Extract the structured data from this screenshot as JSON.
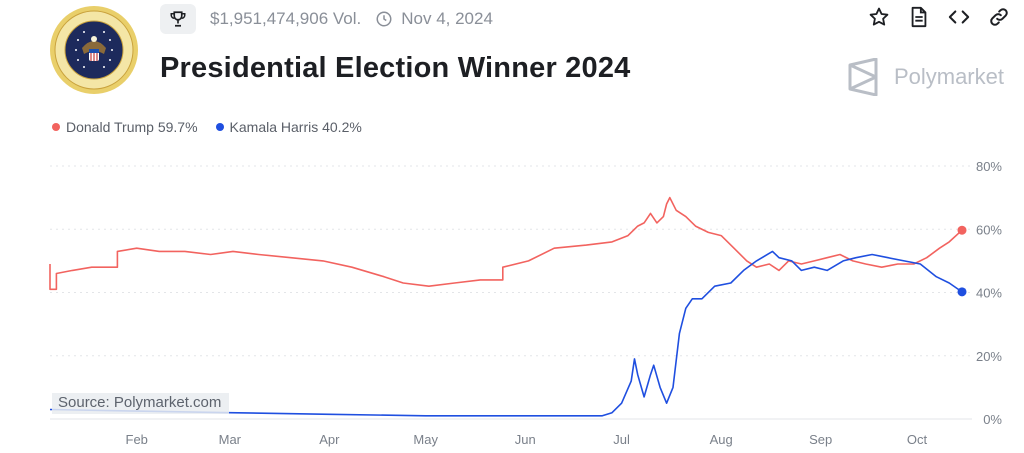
{
  "header": {
    "volume": "$1,951,474,906 Vol.",
    "date": "Nov 4, 2024",
    "title": "Presidential Election Winner 2024",
    "brand": "Polymarket",
    "icons": [
      "trophy-icon",
      "clock-icon",
      "star-icon",
      "document-icon",
      "code-icon",
      "link-icon",
      "polymarket-logo-icon",
      "presidential-seal-icon"
    ]
  },
  "legend": [
    {
      "label": "Donald Trump 59.7%",
      "color": "#f2635f"
    },
    {
      "label": "Kamala Harris 40.2%",
      "color": "#1f4fe0"
    }
  ],
  "source": "Source: Polymarket.com",
  "chart_data": {
    "type": "line",
    "x_tick_labels": [
      "Feb",
      "Mar",
      "Apr",
      "May",
      "Jun",
      "Jul",
      "Aug",
      "Sep",
      "Oct"
    ],
    "y_tick_labels": [
      "80%",
      "60%",
      "40%",
      "20%",
      "0%"
    ],
    "y_ticks": [
      80,
      60,
      40,
      20,
      0
    ],
    "ylim": [
      0,
      80
    ],
    "xlim": [
      "2024-01-05",
      "2024-10-15"
    ],
    "grid": true,
    "legend_position": "top-left",
    "series": [
      {
        "name": "Donald Trump",
        "color": "#f2635f",
        "points": [
          [
            "2024-01-05",
            49
          ],
          [
            "2024-01-05",
            41
          ],
          [
            "2024-01-07",
            41
          ],
          [
            "2024-01-07",
            46
          ],
          [
            "2024-01-12",
            47
          ],
          [
            "2024-01-18",
            48
          ],
          [
            "2024-01-26",
            48
          ],
          [
            "2024-01-26",
            53
          ],
          [
            "2024-02-01",
            54
          ],
          [
            "2024-02-08",
            53
          ],
          [
            "2024-02-16",
            53
          ],
          [
            "2024-02-24",
            52
          ],
          [
            "2024-03-02",
            53
          ],
          [
            "2024-03-10",
            52
          ],
          [
            "2024-03-20",
            51
          ],
          [
            "2024-03-30",
            50
          ],
          [
            "2024-04-08",
            48
          ],
          [
            "2024-04-18",
            45
          ],
          [
            "2024-04-24",
            43
          ],
          [
            "2024-05-02",
            42
          ],
          [
            "2024-05-10",
            43
          ],
          [
            "2024-05-18",
            44
          ],
          [
            "2024-05-25",
            44
          ],
          [
            "2024-05-25",
            48
          ],
          [
            "2024-06-02",
            50
          ],
          [
            "2024-06-10",
            54
          ],
          [
            "2024-06-20",
            55
          ],
          [
            "2024-06-28",
            56
          ],
          [
            "2024-07-03",
            58
          ],
          [
            "2024-07-06",
            61
          ],
          [
            "2024-07-08",
            62
          ],
          [
            "2024-07-10",
            65
          ],
          [
            "2024-07-12",
            62
          ],
          [
            "2024-07-14",
            64
          ],
          [
            "2024-07-15",
            68
          ],
          [
            "2024-07-16",
            70
          ],
          [
            "2024-07-18",
            66
          ],
          [
            "2024-07-21",
            64
          ],
          [
            "2024-07-24",
            61
          ],
          [
            "2024-07-28",
            59
          ],
          [
            "2024-08-01",
            58
          ],
          [
            "2024-08-05",
            54
          ],
          [
            "2024-08-09",
            50
          ],
          [
            "2024-08-12",
            48
          ],
          [
            "2024-08-16",
            49
          ],
          [
            "2024-08-19",
            47
          ],
          [
            "2024-08-22",
            50
          ],
          [
            "2024-08-26",
            49
          ],
          [
            "2024-08-30",
            50
          ],
          [
            "2024-09-03",
            51
          ],
          [
            "2024-09-07",
            52
          ],
          [
            "2024-09-11",
            50
          ],
          [
            "2024-09-15",
            49
          ],
          [
            "2024-09-20",
            48
          ],
          [
            "2024-09-25",
            49
          ],
          [
            "2024-09-30",
            49
          ],
          [
            "2024-10-04",
            51
          ],
          [
            "2024-10-08",
            54
          ],
          [
            "2024-10-11",
            56
          ],
          [
            "2024-10-15",
            59.7
          ]
        ]
      },
      {
        "name": "Kamala Harris",
        "color": "#1f4fe0",
        "points": [
          [
            "2024-01-05",
            3
          ],
          [
            "2024-02-01",
            2.5
          ],
          [
            "2024-03-01",
            2
          ],
          [
            "2024-04-01",
            1.5
          ],
          [
            "2024-05-01",
            1
          ],
          [
            "2024-06-01",
            1
          ],
          [
            "2024-06-25",
            1
          ],
          [
            "2024-06-28",
            2
          ],
          [
            "2024-07-01",
            5
          ],
          [
            "2024-07-04",
            12
          ],
          [
            "2024-07-05",
            19
          ],
          [
            "2024-07-06",
            14
          ],
          [
            "2024-07-08",
            7
          ],
          [
            "2024-07-10",
            14
          ],
          [
            "2024-07-11",
            17
          ],
          [
            "2024-07-13",
            10
          ],
          [
            "2024-07-15",
            5
          ],
          [
            "2024-07-17",
            10
          ],
          [
            "2024-07-19",
            27
          ],
          [
            "2024-07-21",
            35
          ],
          [
            "2024-07-23",
            38
          ],
          [
            "2024-07-26",
            38
          ],
          [
            "2024-07-30",
            42
          ],
          [
            "2024-08-04",
            43
          ],
          [
            "2024-08-08",
            47
          ],
          [
            "2024-08-12",
            50
          ],
          [
            "2024-08-17",
            53
          ],
          [
            "2024-08-19",
            51
          ],
          [
            "2024-08-23",
            50
          ],
          [
            "2024-08-26",
            47
          ],
          [
            "2024-08-30",
            48
          ],
          [
            "2024-09-03",
            47
          ],
          [
            "2024-09-08",
            50
          ],
          [
            "2024-09-12",
            51
          ],
          [
            "2024-09-17",
            52
          ],
          [
            "2024-09-22",
            51
          ],
          [
            "2024-09-27",
            50
          ],
          [
            "2024-10-02",
            49
          ],
          [
            "2024-10-07",
            45
          ],
          [
            "2024-10-11",
            43
          ],
          [
            "2024-10-15",
            40.2
          ]
        ]
      }
    ]
  }
}
